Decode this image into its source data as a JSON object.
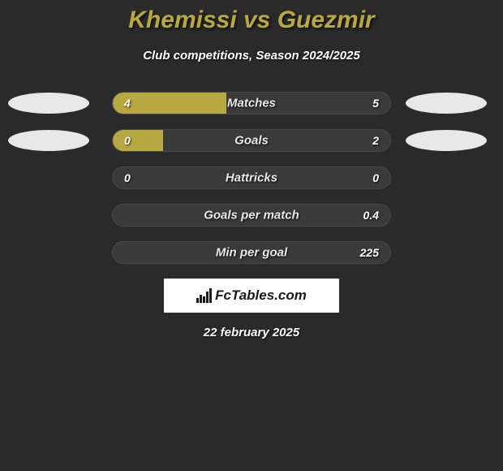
{
  "title": "Khemissi vs Guezmir",
  "subtitle": "Club competitions, Season 2024/2025",
  "date": "22 february 2025",
  "logo_text": "FcTables.com",
  "colors": {
    "background": "#2a2a2a",
    "accent": "#b8a842",
    "track": "#3a3a3a",
    "ellipse": "#e8e8e8",
    "text": "#ffffff"
  },
  "bars": [
    {
      "label": "Matches",
      "left_value": "4",
      "right_value": "5",
      "left_pct": 41,
      "right_pct": 0,
      "show_ellipses": true
    },
    {
      "label": "Goals",
      "left_value": "0",
      "right_value": "2",
      "left_pct": 18,
      "right_pct": 0,
      "show_ellipses": true
    },
    {
      "label": "Hattricks",
      "left_value": "0",
      "right_value": "0",
      "left_pct": 0,
      "right_pct": 0,
      "show_ellipses": false
    },
    {
      "label": "Goals per match",
      "left_value": "",
      "right_value": "0.4",
      "left_pct": 0,
      "right_pct": 0,
      "show_ellipses": false
    },
    {
      "label": "Min per goal",
      "left_value": "",
      "right_value": "225",
      "left_pct": 0,
      "right_pct": 0,
      "show_ellipses": false
    }
  ]
}
